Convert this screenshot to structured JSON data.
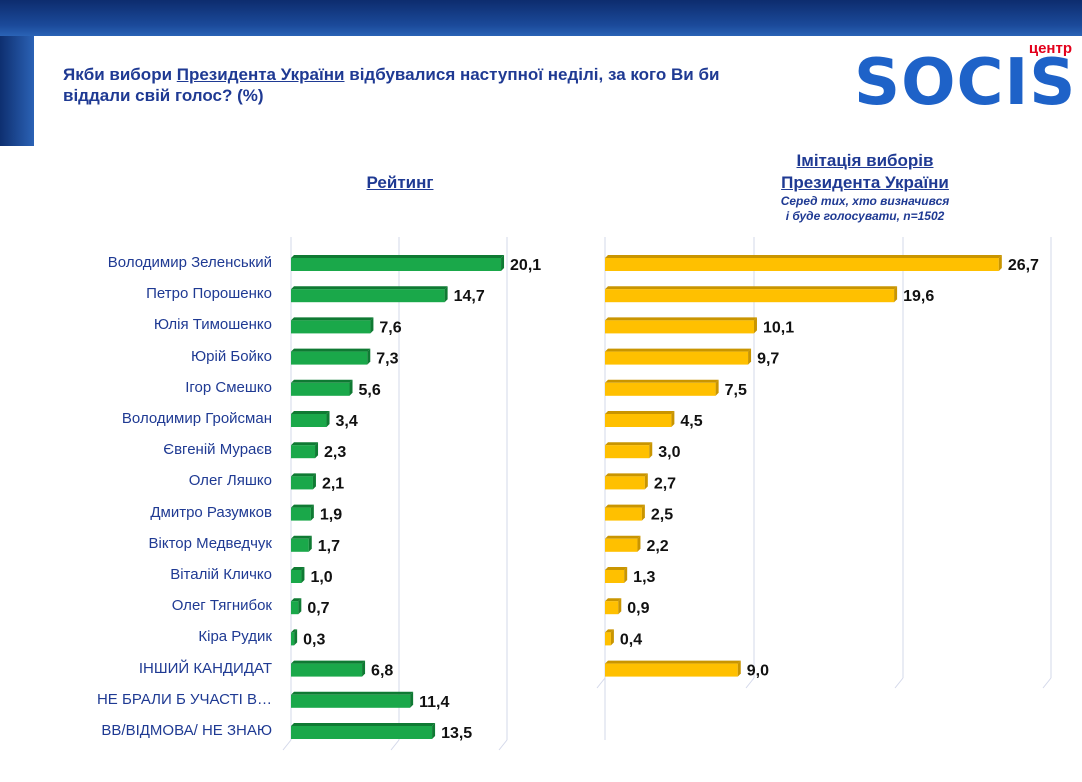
{
  "header": {
    "question_part1": "Якби вибори ",
    "question_link": "Президента України",
    "question_part2": " відбувалися наступної неділі, за кого Ви би віддали свій голос? (%)"
  },
  "logo": {
    "small_text": "центр",
    "word": "SOCIS"
  },
  "chart_data": [
    {
      "type": "bar",
      "orientation": "horizontal",
      "title": "Рейтинг",
      "color": "#1aa84a",
      "categories": [
        "Володимир Зеленський",
        "Петро Порошенко",
        "Юлія Тимошенко",
        "Юрій Бойко",
        "Ігор Смешко",
        "Володимир Гройсман",
        "Євгеній Мураєв",
        "Олег Ляшко",
        "Дмитро Разумков",
        "Віктор Медведчук",
        "Віталій Кличко",
        "Олег Тягнибок",
        "Кіра Рудик",
        "ІНШИЙ КАНДИДАТ",
        "НЕ БРАЛИ Б УЧАСТІ В…",
        "ВВ/ВІДМОВА/ НЕ ЗНАЮ"
      ],
      "values": [
        20.1,
        14.7,
        7.6,
        7.3,
        5.6,
        3.4,
        2.3,
        2.1,
        1.9,
        1.7,
        1.0,
        0.7,
        0.3,
        6.8,
        11.4,
        13.5
      ],
      "labels": [
        "20,1",
        "14,7",
        "7,6",
        "7,3",
        "5,6",
        "3,4",
        "2,3",
        "2,1",
        "1,9",
        "1,7",
        "1,0",
        "0,7",
        "0,3",
        "6,8",
        "11,4",
        "13,5"
      ],
      "xlim": [
        0,
        30
      ]
    },
    {
      "type": "bar",
      "orientation": "horizontal",
      "title": "Імітація виборів Президента України",
      "subtitle": "Серед тих, хто визначився і буде голосувати, n=1502",
      "color": "#ffc000",
      "categories": [
        "Володимир Зеленський",
        "Петро Порошенко",
        "Юлія Тимошенко",
        "Юрій Бойко",
        "Ігор Смешко",
        "Володимир Гройсман",
        "Євгеній Мураєв",
        "Олег Ляшко",
        "Дмитро Разумков",
        "Віктор Медведчук",
        "Віталій Кличко",
        "Олег Тягнибок",
        "Кіра Рудик",
        "ІНШИЙ КАНДИДАТ"
      ],
      "values": [
        26.7,
        19.6,
        10.1,
        9.7,
        7.5,
        4.5,
        3.0,
        2.7,
        2.5,
        2.2,
        1.3,
        0.9,
        0.4,
        9.0
      ],
      "labels": [
        "26,7",
        "19,6",
        "10,1",
        "9,7",
        "7,5",
        "4,5",
        "3,0",
        "2,7",
        "2,5",
        "2,2",
        "1,3",
        "0,9",
        "0,4",
        "9,0"
      ],
      "xlim": [
        0,
        30
      ]
    }
  ],
  "right_title_line1": "Імітація виборів ",
  "right_title_line2": "Президента України",
  "right_subtitle_line1": "Серед тих, хто визначився",
  "right_subtitle_line2": "і буде голосувати, n=1502"
}
